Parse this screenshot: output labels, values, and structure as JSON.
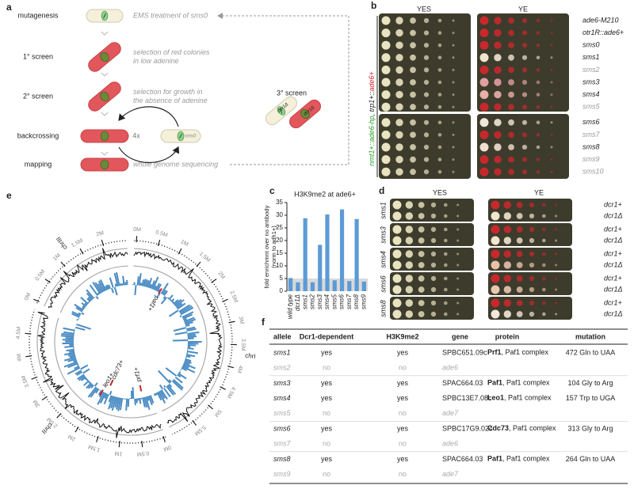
{
  "panel_a": {
    "label": "a",
    "steps": [
      {
        "name": "mutagenesis",
        "description": [
          "EMS treatment of sms0"
        ]
      },
      {
        "name": "1° screen",
        "description": [
          "selection of red colonies",
          "in low adenine"
        ]
      },
      {
        "name": "2° screen",
        "description": [
          "selection for growth in",
          "the absence of adenine"
        ]
      },
      {
        "name": "backcrossing",
        "description": []
      },
      {
        "name": "mapping",
        "description": [
          "whole genome sequencing"
        ]
      }
    ],
    "third_screen": {
      "title": "3° screen",
      "cells": [
        "dcr1Δ",
        "dcr1Δ"
      ]
    },
    "cycle": "4x",
    "backcross_cell": "sms0"
  },
  "panel_b": {
    "label": "b",
    "media": [
      "YES",
      "YE"
    ],
    "construct": [
      {
        "text": "nmt1+::ade6-hp",
        "color": "#2ca02c"
      },
      {
        "text": ", trp1+::",
        "color": "#222222"
      },
      {
        "text": "ade6+",
        "color": "#d62728"
      }
    ],
    "strains": [
      {
        "name": "ade6-M210",
        "color": "#222222"
      },
      {
        "name": "otr1R::ade6+",
        "color": "#222222"
      },
      {
        "name": "sms0",
        "color": "#222222"
      },
      {
        "name": "sms1",
        "color": "#222222"
      },
      {
        "name": "sms2",
        "color": "#999999"
      },
      {
        "name": "sms3",
        "color": "#222222"
      },
      {
        "name": "sms4",
        "color": "#222222"
      },
      {
        "name": "sms5",
        "color": "#999999"
      },
      {
        "name": "sms6",
        "color": "#222222"
      },
      {
        "name": "sms7",
        "color": "#999999"
      },
      {
        "name": "sms8",
        "color": "#222222"
      },
      {
        "name": "sms9",
        "color": "#999999"
      },
      {
        "name": "sms10",
        "color": "#999999"
      }
    ]
  },
  "chart_data": {
    "type": "bar",
    "panel_label": "c",
    "title": "H3K9me2 at ade6+",
    "ylabel": [
      "fold enrichmnt over no antibody",
      "(norm to adh1+)"
    ],
    "categories": [
      "wild type",
      "dcr1Δ",
      "sms1",
      "sms2",
      "sms3",
      "sms4",
      "sms5",
      "sms6",
      "sms7",
      "sms8",
      "sms9"
    ],
    "values": [
      5.2,
      3.5,
      28.8,
      3.5,
      18.3,
      30.3,
      4.3,
      32.3,
      4,
      28.5,
      3.8
    ],
    "color": "#5b9bd5",
    "shaded_range": [
      0,
      5
    ],
    "shade_color": "#d9d9d9",
    "ylim": [
      0,
      35
    ],
    "yticks": [
      0,
      5,
      10,
      15,
      20,
      25,
      30,
      35
    ]
  },
  "panel_d": {
    "label": "d",
    "media": [
      "YES",
      "YE"
    ],
    "rows": [
      {
        "strain": "sms1",
        "genotypes": [
          "dcr1+",
          "dcr1Δ"
        ]
      },
      {
        "strain": "sms3",
        "genotypes": [
          "dcr1+",
          "dcr1Δ"
        ]
      },
      {
        "strain": "sms4",
        "genotypes": [
          "dcr1+",
          "dcr1Δ"
        ]
      },
      {
        "strain": "sms6",
        "genotypes": [
          "dcr1+",
          "dcr1Δ"
        ]
      },
      {
        "strain": "sms8",
        "genotypes": [
          "dcr1+",
          "dcr1Δ"
        ]
      }
    ]
  },
  "panel_e": {
    "label": "e",
    "chromosomes": [
      {
        "name": "chrI",
        "ticks": [
          "0M",
          "0.5M",
          "1M",
          "1.5M",
          "2M",
          "2.5M",
          "3M",
          "3.5M",
          "4M",
          "4.5M",
          "5M",
          "5.5M"
        ]
      },
      {
        "name": "chrII",
        "ticks": [
          "0M",
          "0.5M",
          "1M",
          "1.5M",
          "2M",
          "2.5M",
          "3M",
          "3.5M",
          "4M",
          "4.5M"
        ]
      },
      {
        "name": "chrIII",
        "ticks": [
          "0M",
          "0.5M",
          "1M",
          "1.5M",
          "2M"
        ]
      }
    ],
    "genes": [
      "paf1+",
      "cdc73+",
      "leo1+",
      "prf1+"
    ]
  },
  "panel_f": {
    "label": "f",
    "header": [
      "allele",
      "Dcr1-dependent",
      "H3K9me2",
      "gene",
      "protein",
      "mutation"
    ],
    "rows": [
      {
        "allele": "sms1",
        "dcr1_dependent": "yes",
        "h3k9me2": "yes",
        "gene": "SPBC651.09c",
        "protein": {
          "name": "Prf1",
          "detail": ", Paf1 complex"
        },
        "mutation": "472 Gln to UAA",
        "color": "#222222"
      },
      {
        "allele": "sms2",
        "dcr1_dependent": "no",
        "h3k9me2": "no",
        "gene": "ade6",
        "color": "#aaaaaa"
      },
      {
        "allele": "sms3",
        "dcr1_dependent": "yes",
        "h3k9me2": "yes",
        "gene": "SPAC664.03",
        "protein": {
          "name": "Paf1",
          "detail": ", Paf1 complex"
        },
        "mutation": "104 Gly to Arg",
        "color": "#222222"
      },
      {
        "allele": "sms4",
        "dcr1_dependent": "yes",
        "h3k9me2": "yes",
        "gene": "SPBC13E7.08c",
        "protein": {
          "name": "Leo1",
          "detail": ", Paf1 complex"
        },
        "mutation": "157 Trp to UGA",
        "color": "#222222"
      },
      {
        "allele": "sms5",
        "dcr1_dependent": "no",
        "h3k9me2": "no",
        "gene": "ade7",
        "color": "#aaaaaa"
      },
      {
        "allele": "sms6",
        "dcr1_dependent": "yes",
        "h3k9me2": "yes",
        "gene": "SPBC17G9.02c",
        "protein": {
          "name": "Cdc73",
          "detail": ", Paf1 complex"
        },
        "mutation": "313 Gly to Arg",
        "color": "#222222"
      },
      {
        "allele": "sms7",
        "dcr1_dependent": "no",
        "h3k9me2": "no",
        "gene": "ade6",
        "color": "#aaaaaa"
      },
      {
        "allele": "sms8",
        "dcr1_dependent": "yes",
        "h3k9me2": "yes",
        "gene": "SPAC664.03",
        "protein": {
          "name": "Paf1",
          "detail": ", Paf1 complex"
        },
        "mutation": "264 Gln to UAA",
        "color": "#222222"
      },
      {
        "allele": "sms9",
        "dcr1_dependent": "no",
        "h3k9me2": "no",
        "gene": "ade7",
        "color": "#aaaaaa"
      }
    ]
  }
}
